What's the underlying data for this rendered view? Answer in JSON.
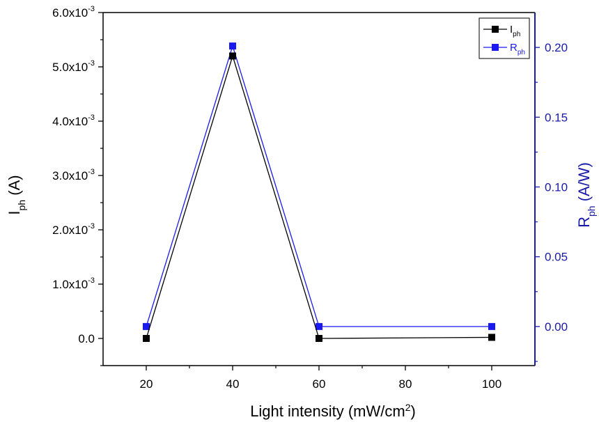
{
  "chart_data": {
    "type": "line",
    "x": [
      20,
      40,
      60,
      100
    ],
    "xlabel": "Light intensity (mW/cm",
    "xlabel_sup": "2",
    "xlabel_tail": ")",
    "xlim": [
      10,
      110
    ],
    "xticks": [
      20,
      40,
      60,
      80,
      100
    ],
    "xtick_labels": [
      "20",
      "40",
      "60",
      "80",
      "100"
    ],
    "y_left": {
      "label_main": "I",
      "label_sub": "ph",
      "label_tail": " (A)",
      "lim": [
        -0.0005,
        0.006
      ],
      "ticks": [
        0,
        0.001,
        0.002,
        0.003,
        0.004,
        0.005,
        0.006
      ],
      "tick_labels": [
        {
          "base": "0.0",
          "exp": ""
        },
        {
          "base": "1.0x10",
          "exp": "-3"
        },
        {
          "base": "2.0x10",
          "exp": "-3"
        },
        {
          "base": "3.0x10",
          "exp": "-3"
        },
        {
          "base": "4.0x10",
          "exp": "-3"
        },
        {
          "base": "5.0x10",
          "exp": "-3"
        },
        {
          "base": "6.0x10",
          "exp": "-3"
        }
      ],
      "color": "#000000"
    },
    "y_right": {
      "label_main": "R",
      "label_sub": "ph",
      "label_tail": " (A/W)",
      "lim": [
        -0.028,
        0.225
      ],
      "ticks": [
        0.0,
        0.05,
        0.1,
        0.15,
        0.2
      ],
      "tick_labels": [
        "0.00",
        "0.05",
        "0.10",
        "0.15",
        "0.20"
      ],
      "color": "#1a1aa8"
    },
    "series": [
      {
        "name_main": "I",
        "name_sub": "ph",
        "axis": "left",
        "values": [
          0.0,
          0.0052,
          0.0,
          2e-05
        ],
        "color": "#000000"
      },
      {
        "name_main": "R",
        "name_sub": "ph",
        "axis": "right",
        "values": [
          0.0,
          0.201,
          0.0,
          0.0
        ],
        "color": "#1a1af0"
      }
    ],
    "legend_position": "top-right",
    "grid": false
  }
}
